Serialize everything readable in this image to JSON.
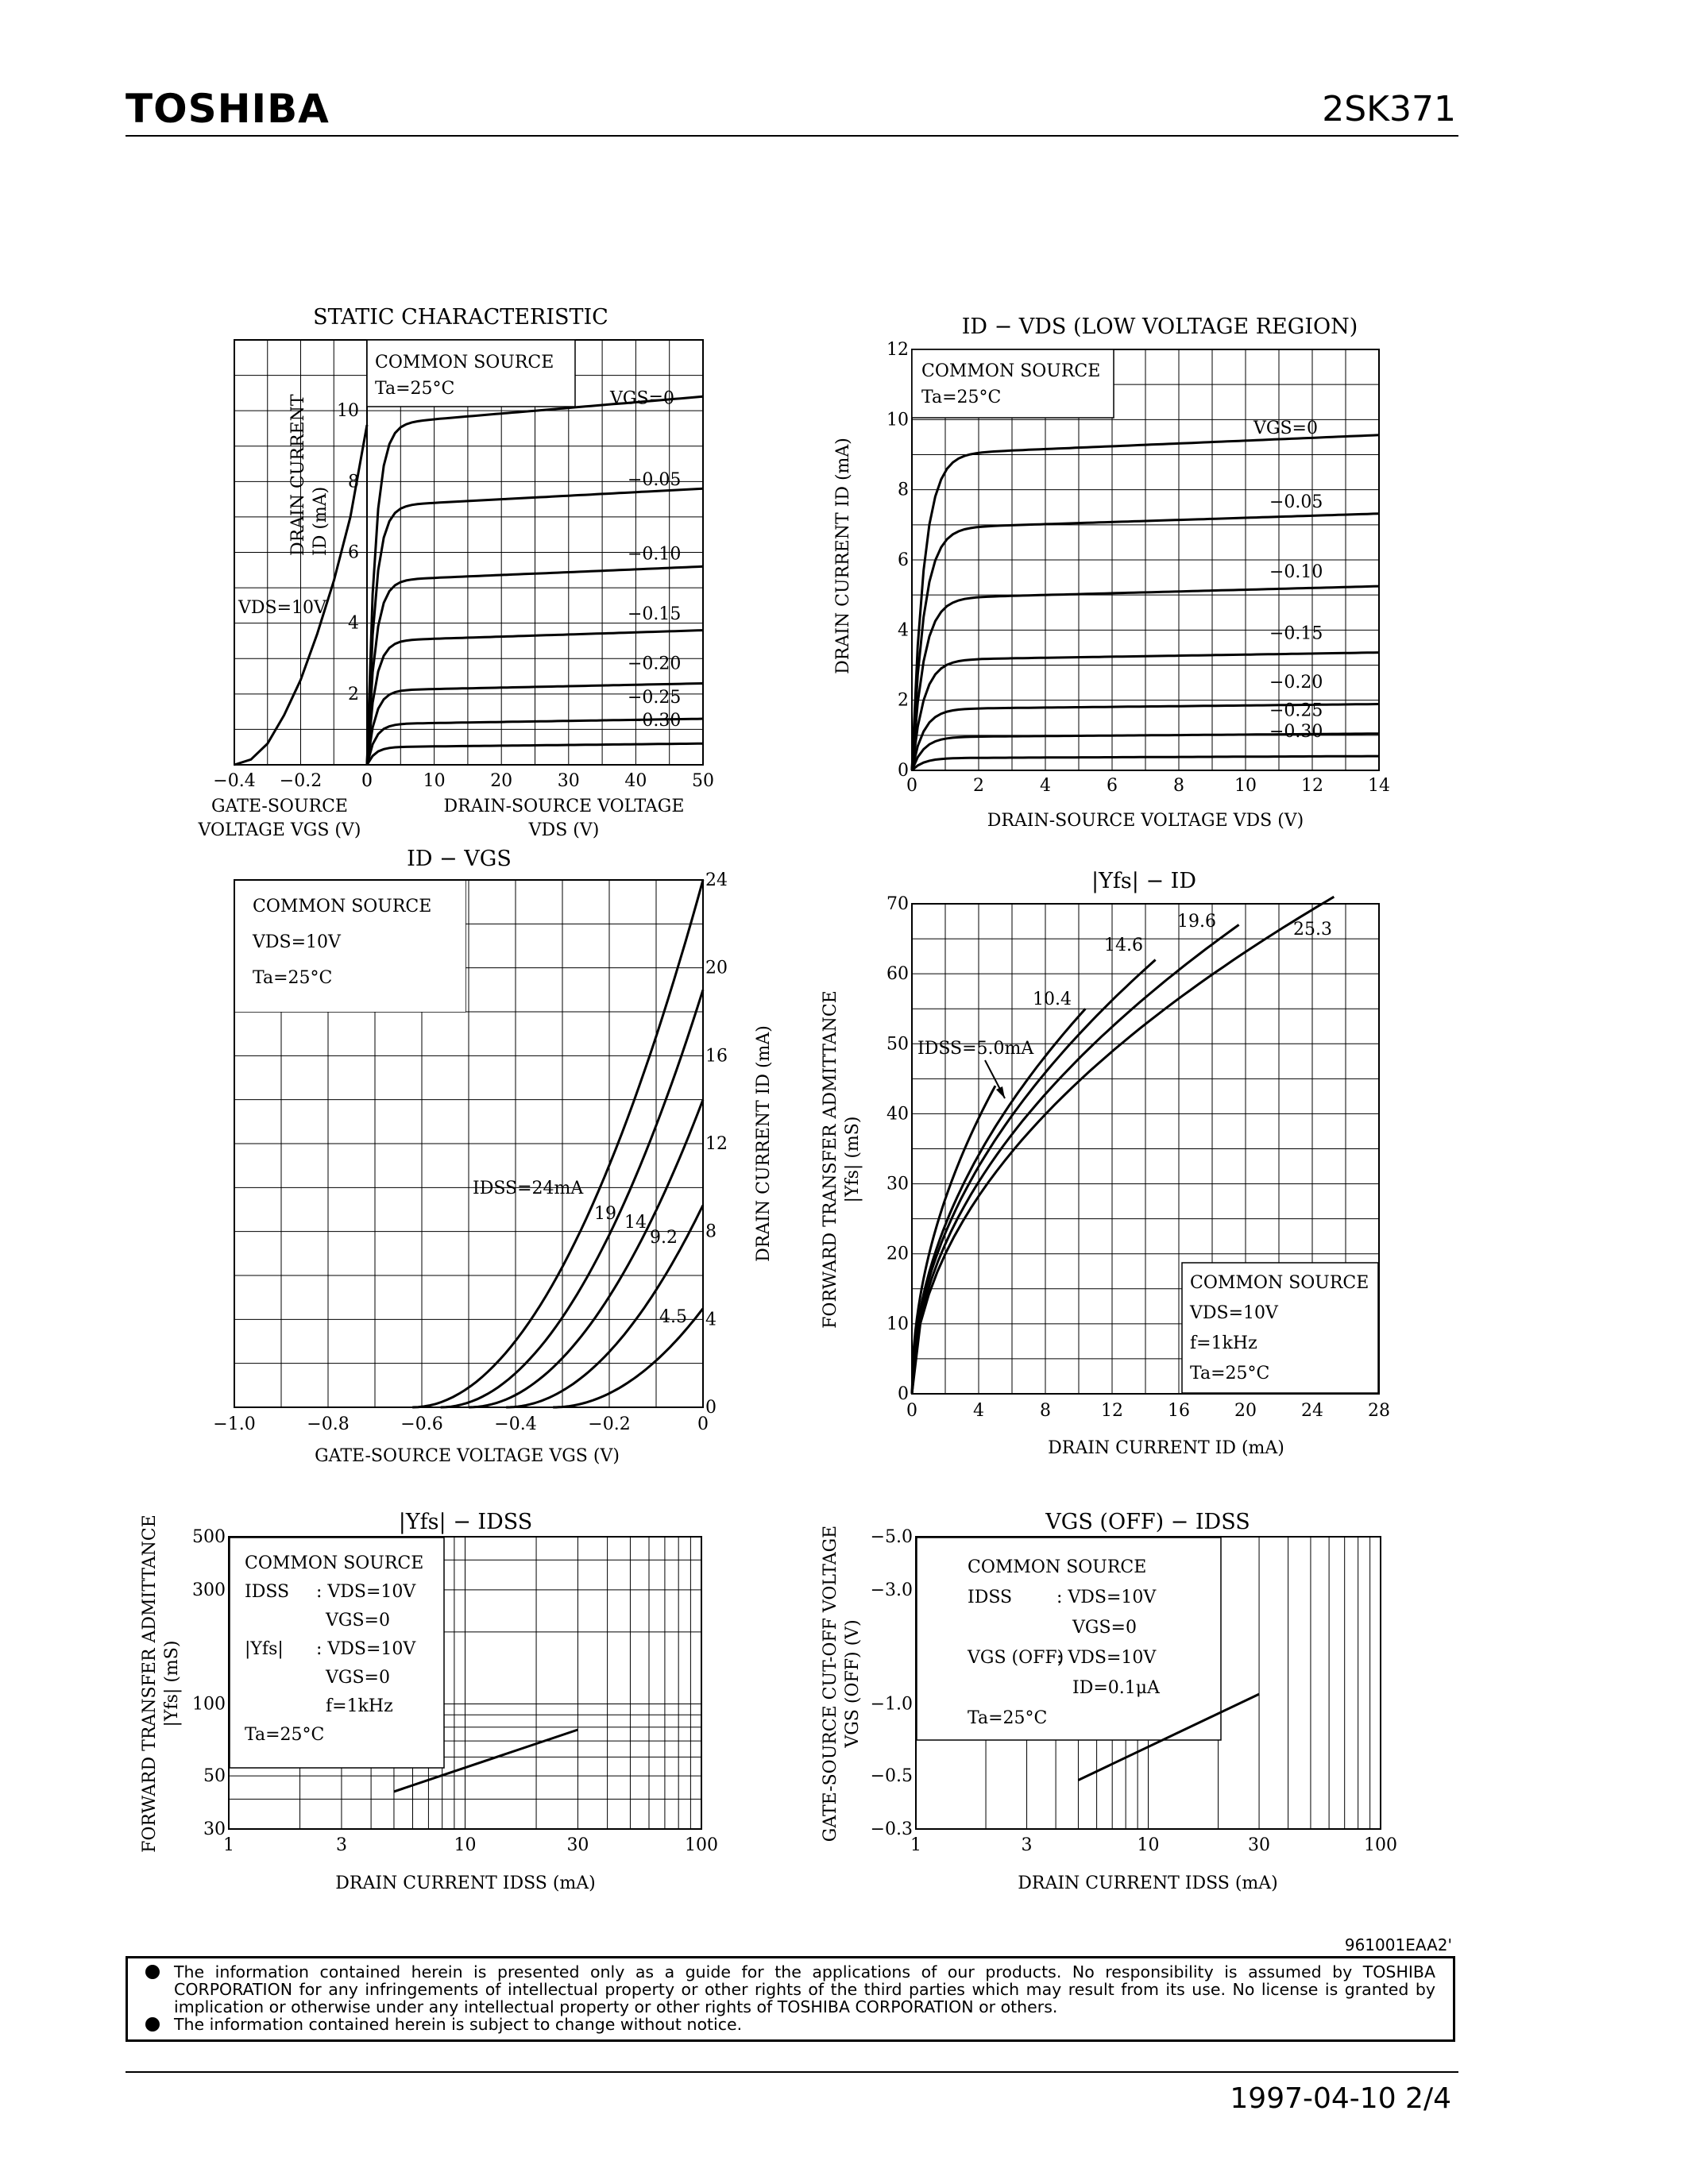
{
  "header": {
    "brand": "TOSHIBA",
    "part_number": "2SK371"
  },
  "chart_data": [
    {
      "id": "static",
      "type": "line",
      "title": "STATIC CHARACTERISTIC",
      "info": [
        "COMMON SOURCE",
        "Ta=25°C"
      ],
      "left_panel": {
        "xlabel_lines": [
          "GATE-SOURCE",
          "VOLTAGE  VGS  (V)"
        ],
        "xlim": [
          -0.4,
          0
        ],
        "xticks": [
          "−0.4",
          "−0.2",
          "0"
        ],
        "curve_label": "VDS=10V",
        "curve": {
          "x": [
            -0.4,
            -0.35,
            -0.3,
            -0.25,
            -0.2,
            -0.15,
            -0.1,
            -0.05,
            0
          ],
          "y": [
            0,
            0.15,
            0.6,
            1.4,
            2.4,
            3.7,
            5.2,
            7.0,
            9.6
          ]
        }
      },
      "right_panel": {
        "xlabel_lines": [
          "DRAIN-SOURCE VOLTAGE",
          "VDS  (V)"
        ],
        "xlim": [
          0,
          50
        ],
        "xticks": [
          "0",
          "10",
          "20",
          "30",
          "40",
          "50"
        ],
        "series": [
          {
            "name": "VGS=0",
            "sat": 9.6,
            "slope": 0.016
          },
          {
            "name": "−0.05",
            "sat": 7.3,
            "slope": 0.01
          },
          {
            "name": "−0.10",
            "sat": 5.2,
            "slope": 0.008
          },
          {
            "name": "−0.15",
            "sat": 3.5,
            "slope": 0.006
          },
          {
            "name": "−0.20",
            "sat": 2.1,
            "slope": 0.004
          },
          {
            "name": "−0.25",
            "sat": 1.15,
            "slope": 0.003
          },
          {
            "name": "−0.30",
            "sat": 0.5,
            "slope": 0.002
          }
        ]
      },
      "ylabel_lines": [
        "DRAIN CURRENT",
        "ID  (mA)"
      ],
      "ylim": [
        0,
        12
      ],
      "yticks": [
        "2",
        "4",
        "6",
        "8",
        "10"
      ]
    },
    {
      "id": "low_voltage",
      "type": "line",
      "title": "ID − VDS   (LOW VOLTAGE REGION)",
      "info": [
        "COMMON SOURCE",
        "Ta=25°C"
      ],
      "xlabel": "DRAIN-SOURCE VOLTAGE  VDS  (V)",
      "ylabel": "DRAIN CURRENT  ID  (mA)",
      "xlim": [
        0,
        14
      ],
      "ylim": [
        0,
        12
      ],
      "xticks": [
        "0",
        "2",
        "4",
        "6",
        "8",
        "10",
        "12",
        "14"
      ],
      "yticks": [
        "0",
        "2",
        "4",
        "6",
        "8",
        "10",
        "12"
      ],
      "series": [
        {
          "name": "VGS=0",
          "sat": 9.0,
          "slope": 0.04
        },
        {
          "name": "−0.05",
          "sat": 6.9,
          "slope": 0.03
        },
        {
          "name": "−0.10",
          "sat": 4.9,
          "slope": 0.025
        },
        {
          "name": "−0.15",
          "sat": 3.15,
          "slope": 0.015
        },
        {
          "name": "−0.20",
          "sat": 1.75,
          "slope": 0.01
        },
        {
          "name": "−0.25",
          "sat": 0.95,
          "slope": 0.007
        },
        {
          "name": "−0.30",
          "sat": 0.35,
          "slope": 0.004
        }
      ]
    },
    {
      "id": "id_vgs",
      "type": "line",
      "title": "ID − VGS",
      "info": [
        "COMMON SOURCE",
        "VDS=10V",
        "Ta=25°C"
      ],
      "xlabel": "GATE-SOURCE VOLTAGE  VGS  (V)",
      "ylabel": "DRAIN CURRENT  ID  (mA)",
      "xlim": [
        -1.0,
        0
      ],
      "ylim": [
        0,
        24
      ],
      "xticks": [
        "−1.0",
        "−0.8",
        "−0.6",
        "−0.4",
        "−0.2",
        "0"
      ],
      "yticks": [
        "0",
        "4",
        "8",
        "12",
        "16",
        "20",
        "24"
      ],
      "series": [
        {
          "name": "IDSS=24mA",
          "idss": 24,
          "vp": -0.62
        },
        {
          "name": "19",
          "idss": 19,
          "vp": -0.56
        },
        {
          "name": "14",
          "idss": 14,
          "vp": -0.5
        },
        {
          "name": "9.2",
          "idss": 9.2,
          "vp": -0.42
        },
        {
          "name": "4.5",
          "idss": 4.5,
          "vp": -0.32
        }
      ]
    },
    {
      "id": "yfs_id",
      "type": "line",
      "title": "|Yfs| − ID",
      "info": [
        "COMMON SOURCE",
        "VDS=10V",
        "f=1kHz",
        "Ta=25°C"
      ],
      "xlabel": "DRAIN CURRENT  ID  (mA)",
      "ylabel_lines": [
        "FORWARD TRANSFER ADMITTANCE",
        "|Yfs|  (mS)"
      ],
      "xlim": [
        0,
        28
      ],
      "ylim": [
        0,
        70
      ],
      "xticks": [
        "0",
        "4",
        "8",
        "12",
        "16",
        "20",
        "24",
        "28"
      ],
      "yticks": [
        "0",
        "10",
        "20",
        "30",
        "40",
        "50",
        "60",
        "70"
      ],
      "series": [
        {
          "name": "IDSS=5.0mA",
          "idss": 5.0,
          "gm0": 44
        },
        {
          "name": "10.4",
          "idss": 10.4,
          "gm0": 55
        },
        {
          "name": "14.6",
          "idss": 14.6,
          "gm0": 62
        },
        {
          "name": "19.6",
          "idss": 19.6,
          "gm0": 67
        },
        {
          "name": "25.3",
          "idss": 25.3,
          "gm0": 71
        }
      ]
    },
    {
      "id": "yfs_idss",
      "type": "line",
      "title": "|Yfs| − IDSS",
      "info": [
        [
          "COMMON SOURCE",
          ""
        ],
        [
          "IDSS",
          ": VDS=10V"
        ],
        [
          "",
          "VGS=0"
        ],
        [
          "|Yfs|",
          ": VDS=10V"
        ],
        [
          "",
          "VGS=0"
        ],
        [
          "",
          "f=1kHz"
        ],
        [
          "Ta=25°C",
          ""
        ]
      ],
      "xlabel": "DRAIN CURRENT  IDSS  (mA)",
      "ylabel_lines": [
        "FORWARD TRANSFER ADMITTANCE",
        "|Yfs|  (mS)"
      ],
      "xscale": "log",
      "yscale": "log",
      "xlim": [
        1,
        100
      ],
      "ylim": [
        30,
        500
      ],
      "xticks": [
        "1",
        "3",
        "10",
        "30",
        "100"
      ],
      "yticks": [
        "30",
        "50",
        "100",
        "300",
        "500"
      ],
      "x": [
        5,
        30
      ],
      "y": [
        43,
        78
      ]
    },
    {
      "id": "vgsoff_idss",
      "type": "line",
      "title": "VGS (OFF) − IDSS",
      "info": [
        [
          "COMMON SOURCE",
          ""
        ],
        [
          "IDSS",
          ": VDS=10V"
        ],
        [
          "",
          "VGS=0"
        ],
        [
          "VGS (OFF)",
          ": VDS=10V"
        ],
        [
          "",
          "ID=0.1μA"
        ],
        [
          "Ta=25°C",
          ""
        ]
      ],
      "xlabel": "DRAIN CURRENT  IDSS  (mA)",
      "ylabel_lines": [
        "GATE-SOURCE CUT-OFF VOLTAGE",
        "VGS (OFF)  (V)"
      ],
      "xscale": "log",
      "yscale": "log",
      "xlim": [
        1,
        100
      ],
      "ylim": [
        -0.3,
        -5.0
      ],
      "xticks": [
        "1",
        "3",
        "10",
        "30",
        "100"
      ],
      "yticks": [
        "−0.3",
        "−0.5",
        "−1.0",
        "−3.0",
        "−5.0"
      ],
      "x": [
        5,
        30
      ],
      "y": [
        -0.48,
        -1.1
      ]
    }
  ],
  "footer": {
    "doc_ref": "961001EAA2'",
    "notices": [
      "The information contained herein is presented only as a guide for the applications of our products. No responsibility is assumed by TOSHIBA CORPORATION for any infringements of intellectual property or other rights of the third parties which may result from its use. No license is granted by implication or otherwise under any intellectual property or other rights of TOSHIBA CORPORATION or others.",
      "The information contained herein is subject to change without notice."
    ],
    "date_page": "1997-04-10   2/4"
  }
}
